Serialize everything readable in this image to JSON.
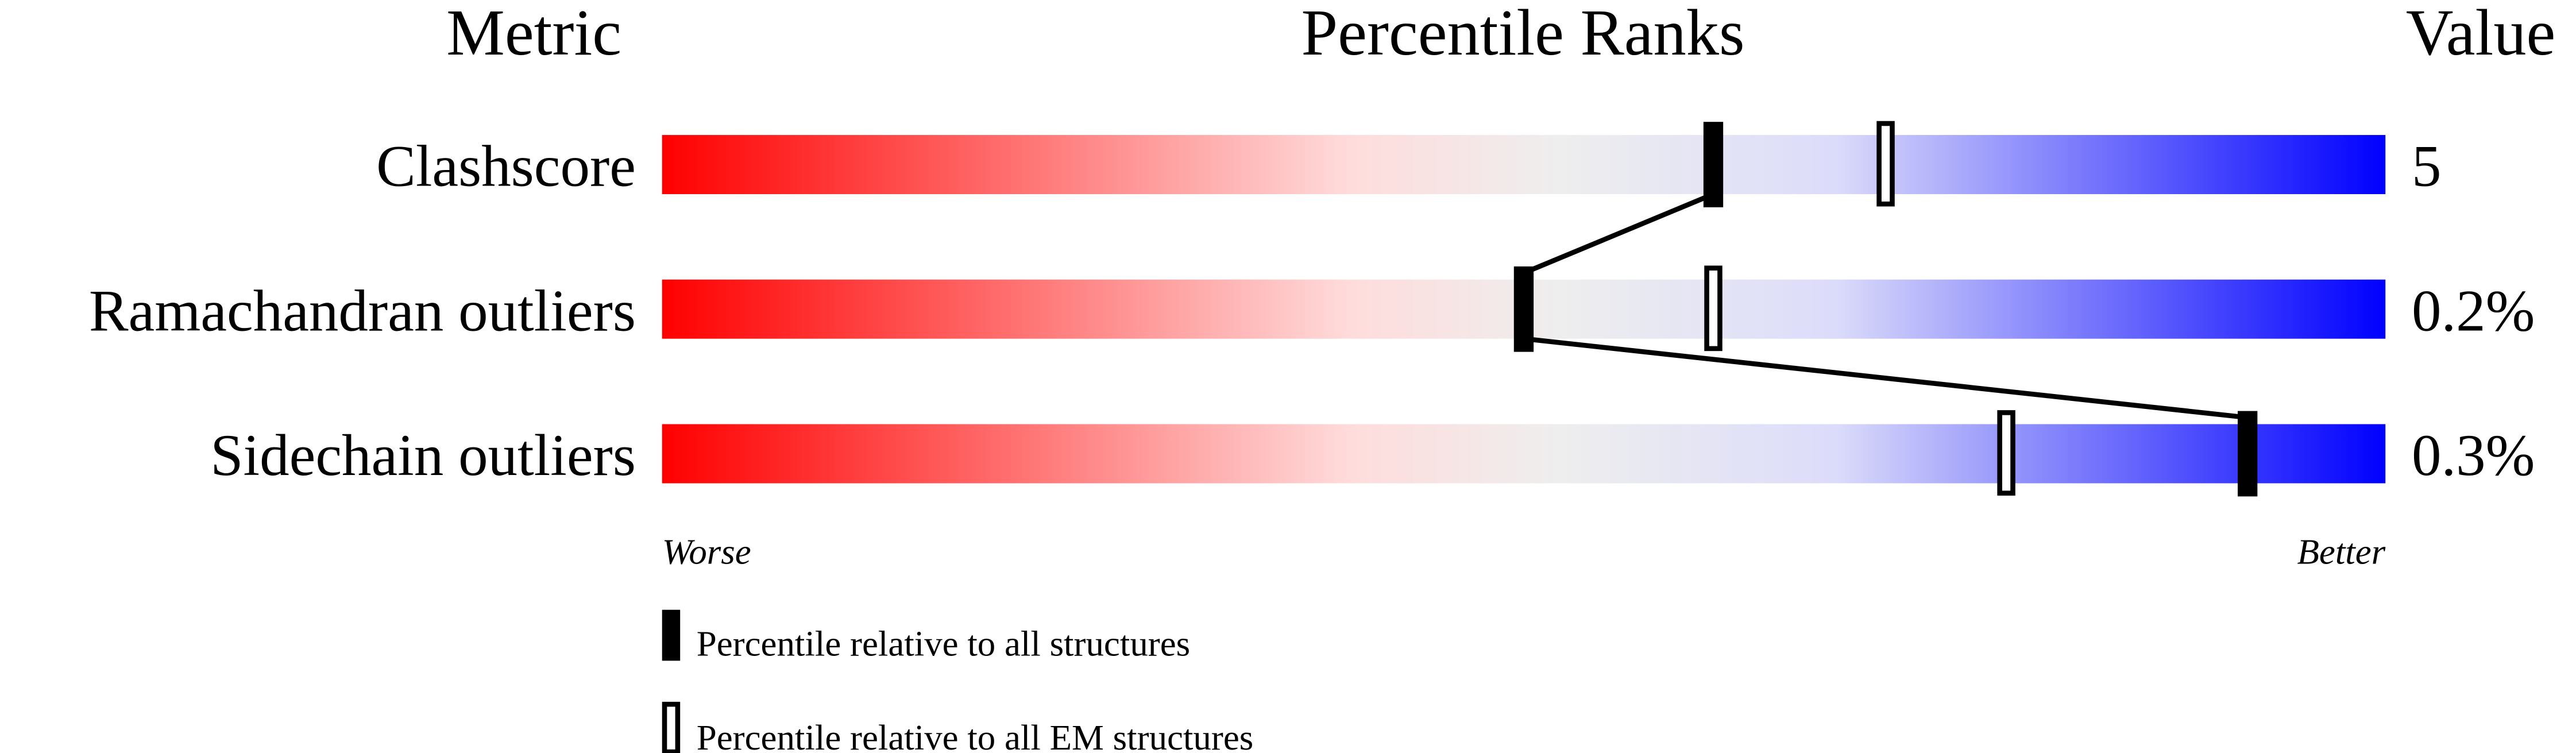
{
  "chart_data": {
    "type": "bar",
    "title": "Percentile Ranks",
    "column_headers": {
      "metric": "Metric",
      "ranks": "Percentile Ranks",
      "value": "Value"
    },
    "xlim": [
      0,
      100
    ],
    "axis_labels": {
      "left": "Worse",
      "right": "Better"
    },
    "gradient_colors": [
      "#ff0000",
      "#ffdcdc",
      "#eeeeee",
      "#dcdcfa",
      "#0000ff"
    ],
    "metrics": [
      {
        "label": "Clashscore",
        "value": "5",
        "percentile_all": 61,
        "percentile_em": 71
      },
      {
        "label": "Ramachandran outliers",
        "value": "0.2%",
        "percentile_all": 50,
        "percentile_em": 61
      },
      {
        "label": "Sidechain outliers",
        "value": "0.3%",
        "percentile_all": 92,
        "percentile_em": 78
      }
    ],
    "legend": [
      {
        "marker": "filled",
        "label": "Percentile relative to all structures"
      },
      {
        "marker": "open",
        "label": "Percentile relative to all EM structures"
      }
    ],
    "grid": false
  }
}
